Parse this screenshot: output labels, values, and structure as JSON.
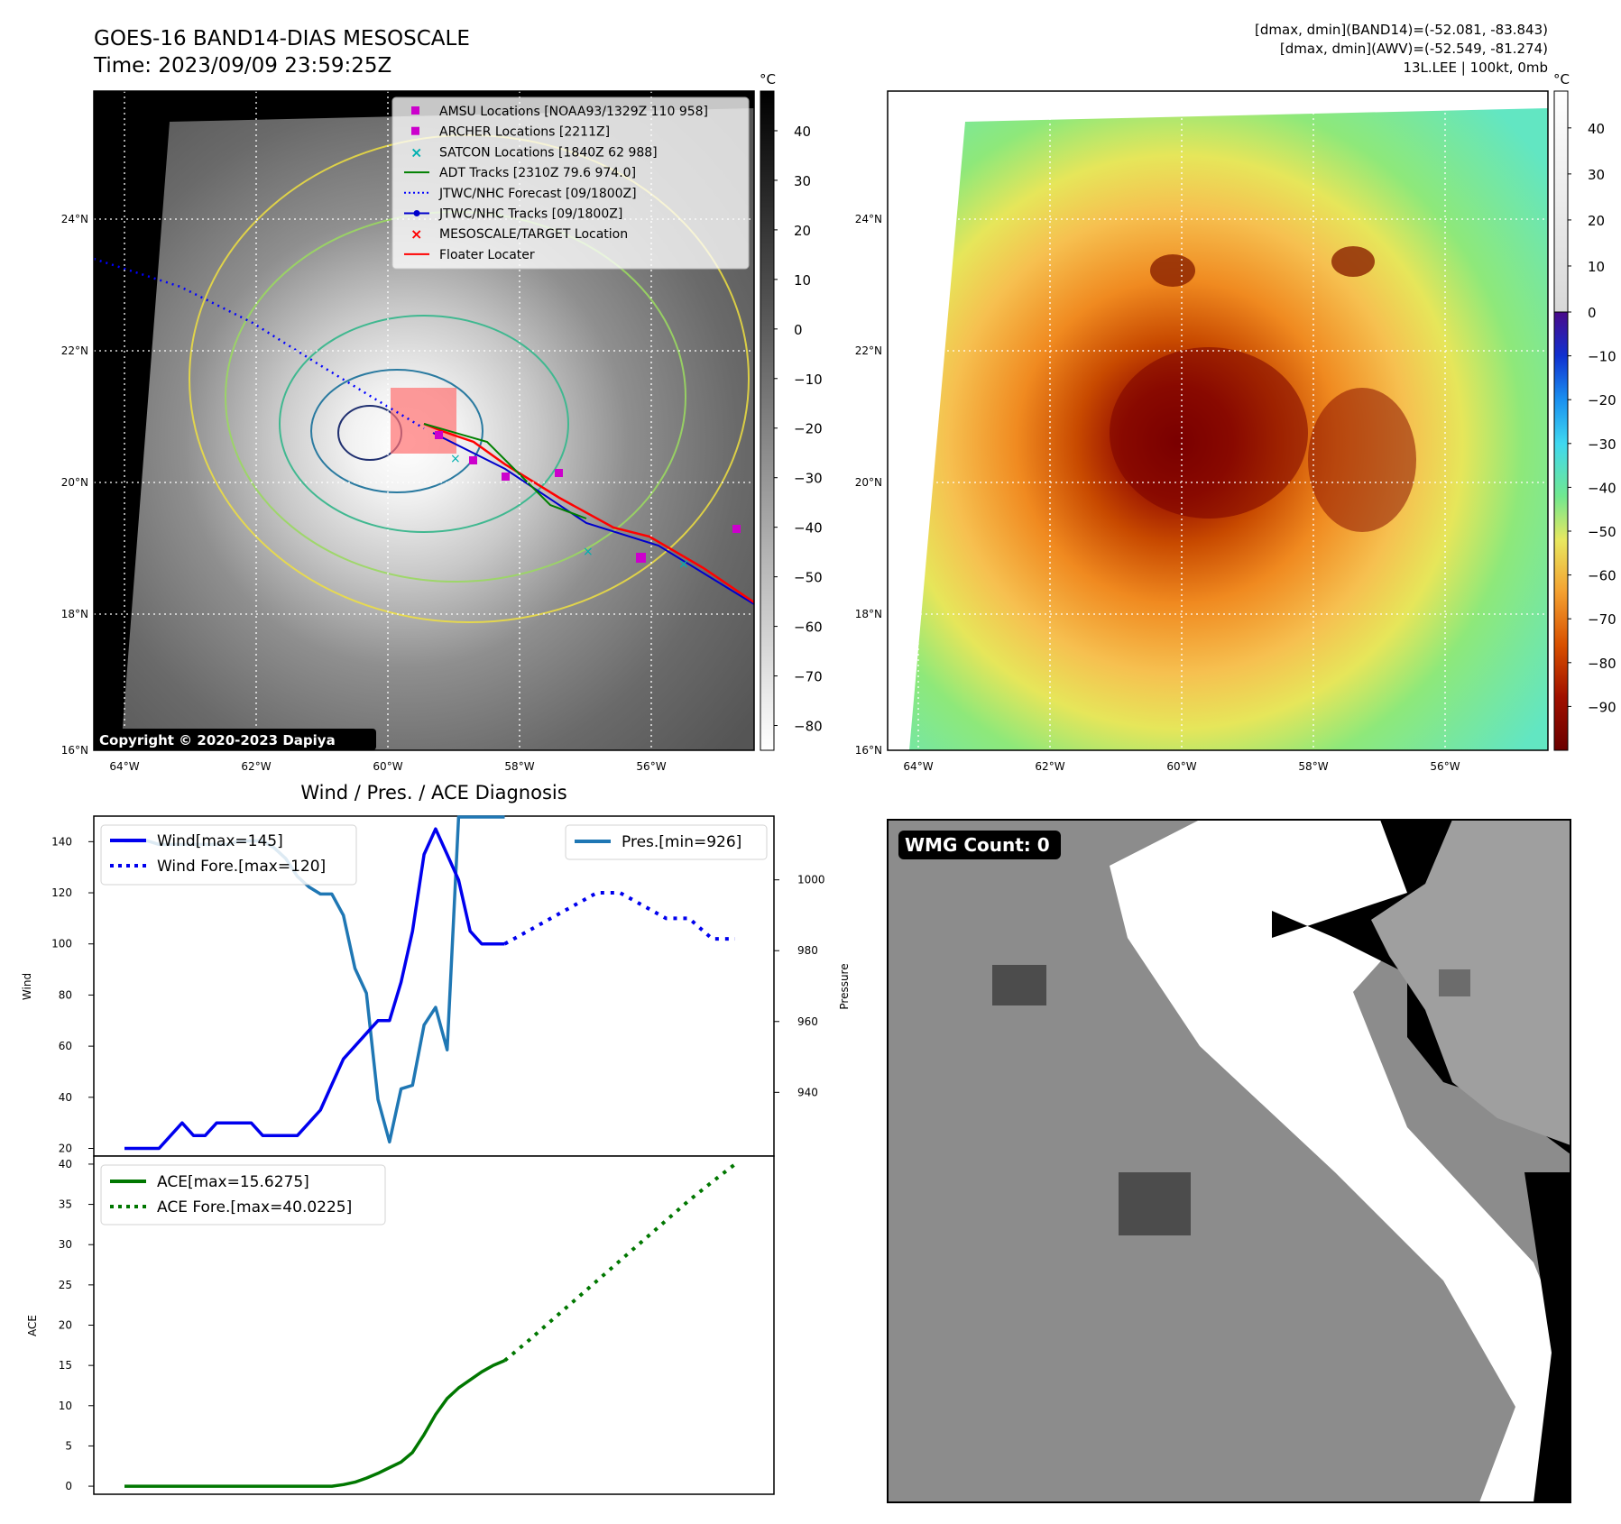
{
  "header": {
    "title_line1": "GOES-16 BAND14-DIAS MESOSCALE",
    "title_line2": "Time: 2023/09/09 23:59:25Z",
    "right_line1": "[dmax, dmin](BAND14)=(-52.081, -83.843)",
    "right_line2": "[dmax, dmin](AWV)=(-52.549, -81.274)",
    "right_line3": "13L.LEE | 100kt, 0mb"
  },
  "map_axes": {
    "lat_labels": [
      "24°N",
      "22°N",
      "20°N",
      "18°N",
      "16°N"
    ],
    "lon_labels": [
      "64°W",
      "62°W",
      "60°W",
      "58°W",
      "56°W"
    ],
    "copyright": "Copyright © 2020-2023 Dapiya"
  },
  "ir_colorbar": {
    "unit": "°C",
    "ticks": [
      "40",
      "30",
      "20",
      "10",
      "0",
      "−10",
      "−20",
      "−30",
      "−40",
      "−50",
      "−60",
      "−70",
      "−80"
    ]
  },
  "awv_colorbar": {
    "unit": "°C",
    "ticks": [
      "40",
      "30",
      "20",
      "10",
      "0",
      "−10",
      "−20",
      "−30",
      "−40",
      "−50",
      "−60",
      "−70",
      "−80",
      "−90"
    ]
  },
  "map_legend": [
    {
      "label": "AMSU Locations [NOAA93/1329Z 110 958]",
      "symbol": "square",
      "color": "#cc00cc"
    },
    {
      "label": "ARCHER Locations [2211Z]",
      "symbol": "square",
      "color": "#cc00cc"
    },
    {
      "label": "SATCON Locations [1840Z 62 988]",
      "symbol": "x",
      "color": "#00b0b0"
    },
    {
      "label": "ADT Tracks [2310Z 79.6 974.0]",
      "symbol": "line",
      "color": "#008000"
    },
    {
      "label": "JTWC/NHC Forecast [09/1800Z]",
      "symbol": "dotted",
      "color": "#0000ff"
    },
    {
      "label": "JTWC/NHC Tracks [09/1800Z]",
      "symbol": "line-dot",
      "color": "#0000cc"
    },
    {
      "label": "MESOSCALE/TARGET Location",
      "symbol": "x",
      "color": "#ff0000"
    },
    {
      "label": "Floater Locater",
      "symbol": "line",
      "color": "#ff0000"
    }
  ],
  "diagnosis": {
    "title": "Wind / Pres. / ACE Diagnosis",
    "wind_ylabel": "Wind",
    "pres_ylabel": "Pressure",
    "ace_ylabel": "ACE",
    "legend_wind": "Wind[max=145]",
    "legend_wind_fore": "Wind Fore.[max=120]",
    "legend_pres": "Pres.[min=926]",
    "legend_ace": "ACE[max=15.6275]",
    "legend_ace_fore": "ACE Fore.[max=40.0225]"
  },
  "wmg": {
    "label": "WMG Count: 0"
  },
  "colors": {
    "wind": "#0000ee",
    "pressure": "#1f77b4",
    "ace": "#007700",
    "floater": "#ff0000"
  },
  "chart_data": [
    {
      "type": "line",
      "title": "Wind / Pres. / ACE Diagnosis",
      "ylabel": "Wind",
      "ylim": [
        17,
        150
      ],
      "y2label": "Pressure",
      "y2lim": [
        922,
        1018
      ],
      "x": [
        0,
        1,
        2,
        3,
        4,
        5,
        6,
        7,
        8,
        9,
        10,
        11,
        12,
        13,
        14,
        15,
        16,
        17,
        18,
        19,
        20,
        21,
        22,
        23,
        24,
        25,
        26,
        27,
        28,
        29,
        30,
        31,
        32,
        33,
        34,
        35,
        36,
        37,
        38,
        39,
        40,
        41,
        42,
        43,
        44,
        45,
        46,
        47,
        48,
        49,
        50,
        51,
        52,
        53
      ],
      "series": [
        {
          "name": "Wind[max=145]",
          "axis": "left",
          "style": "solid",
          "x": [
            0,
            1,
            2,
            3,
            4,
            5,
            6,
            7,
            8,
            9,
            10,
            11,
            12,
            13,
            14,
            15,
            16,
            17,
            18,
            19,
            20,
            21,
            22,
            23,
            24,
            25,
            26,
            27,
            28,
            29,
            30,
            31,
            32,
            33
          ],
          "values": [
            20,
            20,
            20,
            20,
            25,
            30,
            25,
            25,
            30,
            30,
            30,
            30,
            25,
            25,
            25,
            25,
            30,
            35,
            45,
            55,
            60,
            65,
            70,
            70,
            85,
            105,
            135,
            145,
            135,
            125,
            105,
            100,
            100,
            100
          ]
        },
        {
          "name": "Wind Fore.[max=120]",
          "axis": "left",
          "style": "dotted",
          "x": [
            33,
            35,
            37,
            39,
            41,
            43,
            45,
            47,
            49,
            51,
            53
          ],
          "values": [
            100,
            105,
            110,
            115,
            120,
            120,
            115,
            110,
            110,
            102,
            102
          ]
        },
        {
          "name": "Pres.[min=926]",
          "axis": "right",
          "style": "solid",
          "x": [
            0,
            1,
            2,
            3,
            4,
            5,
            6,
            7,
            8,
            9,
            10,
            11,
            12,
            13,
            14,
            15,
            16,
            17,
            18,
            19,
            20,
            21,
            22,
            23,
            24,
            25,
            26,
            27,
            28,
            29,
            30,
            31,
            32,
            33
          ],
          "values": [
            1011,
            1011,
            1011,
            1010,
            1010,
            1010,
            1010,
            1010,
            1010,
            1010,
            1011,
            1011,
            1011,
            1009,
            1006,
            1001,
            998,
            996,
            996,
            990,
            975,
            968,
            938,
            926,
            941,
            942,
            959,
            964,
            952,
            1018,
            1018,
            1018,
            1018,
            1018
          ]
        },
        {
          "name": "ACE[max=15.6275]",
          "axis": "ace",
          "style": "solid",
          "x": [
            0,
            2,
            4,
            6,
            8,
            10,
            12,
            14,
            16,
            18,
            19,
            20,
            21,
            22,
            23,
            24,
            25,
            26,
            27,
            28,
            29,
            30,
            31,
            32,
            33
          ],
          "values": [
            0,
            0,
            0,
            0,
            0,
            0,
            0,
            0,
            0,
            0,
            0.2,
            0.5,
            1.0,
            1.6,
            2.3,
            3.0,
            4.2,
            6.4,
            8.9,
            10.9,
            12.2,
            13.2,
            14.2,
            15.0,
            15.6
          ]
        },
        {
          "name": "ACE Fore.[max=40.0225]",
          "axis": "ace",
          "style": "dotted",
          "x": [
            33,
            35,
            37,
            39,
            41,
            43,
            45,
            47,
            49,
            51,
            53
          ],
          "values": [
            15.6,
            18.0,
            20.5,
            23.0,
            25.5,
            28.0,
            30.5,
            33.0,
            35.5,
            37.8,
            40.0
          ]
        }
      ],
      "ace_ylim": [
        -1,
        41
      ],
      "wind_ticks": [
        20,
        40,
        60,
        80,
        100,
        120,
        140
      ],
      "pres_ticks": [
        940,
        960,
        980,
        1000
      ],
      "ace_ticks": [
        0,
        5,
        10,
        15,
        20,
        25,
        30,
        35,
        40
      ]
    }
  ]
}
